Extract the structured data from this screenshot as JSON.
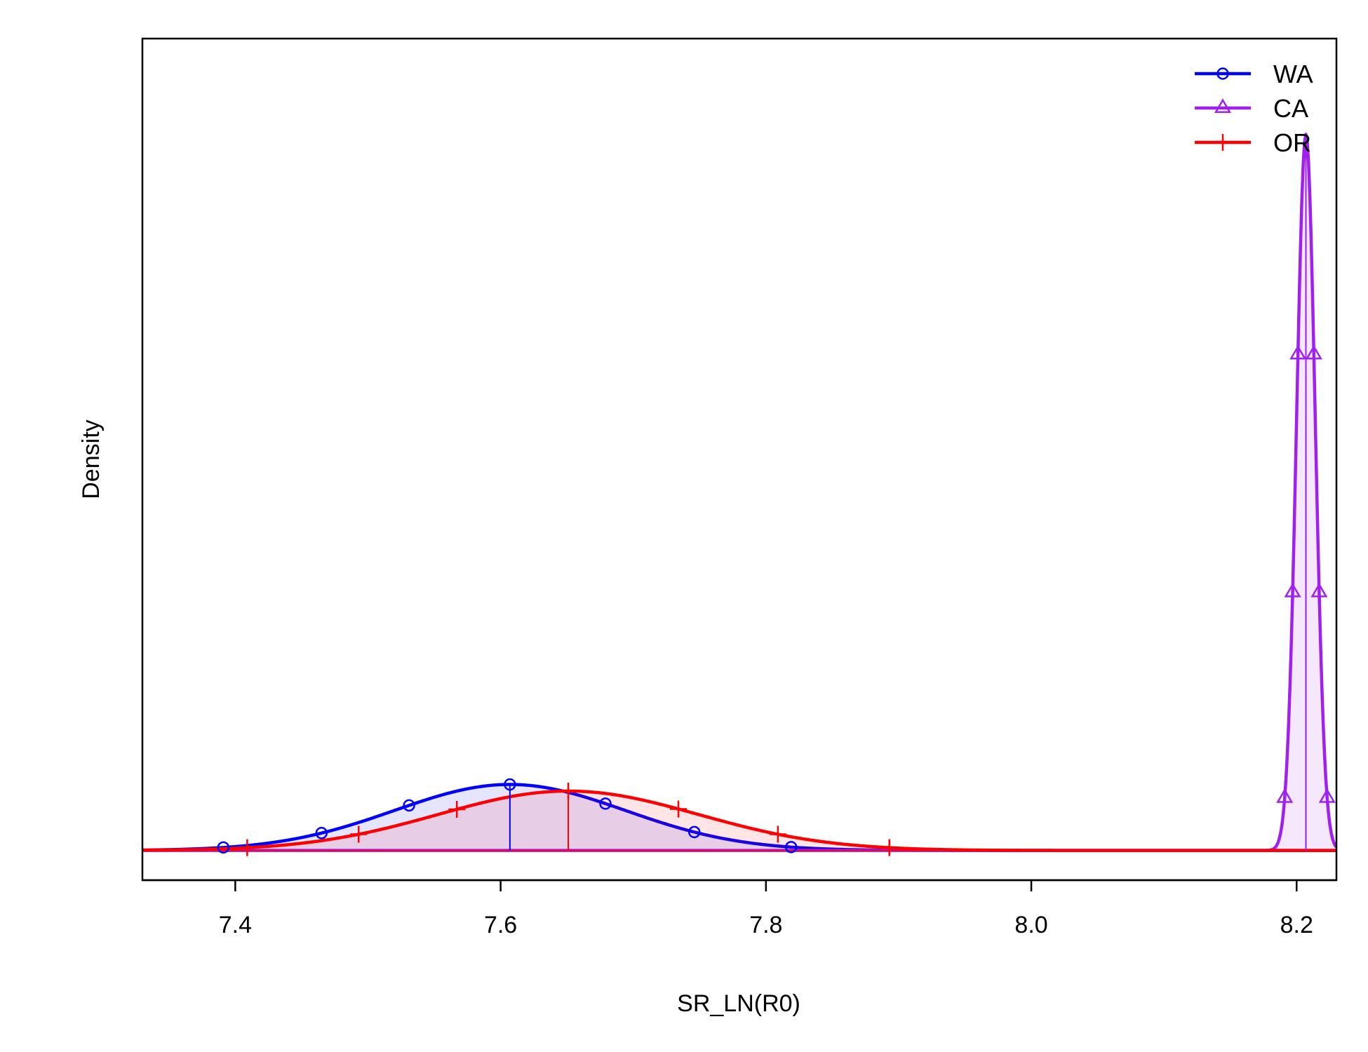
{
  "chart_data": {
    "type": "line",
    "title": "",
    "xlabel": "SR_LN(R0)",
    "ylabel": "Density",
    "xlim": [
      7.33,
      8.23
    ],
    "ylim": [
      -0.45,
      12.3
    ],
    "x_ticks": [
      "7.4",
      "7.6",
      "7.8",
      "8.0",
      "8.2"
    ],
    "x_tick_values": [
      7.4,
      7.6,
      7.8,
      8.0,
      8.2
    ],
    "show_y_ticks": false,
    "grid": false,
    "legend_position": "top-right",
    "series": [
      {
        "name": "WA",
        "color": "#0000ff",
        "fill": "#0000ff",
        "marker": "circle",
        "distribution": "normal",
        "mean": 7.607,
        "sd": 0.087,
        "peak_density": 1.0,
        "median_line": 7.607,
        "marker_x": [
          7.391,
          7.465,
          7.531,
          7.607,
          7.679,
          7.746,
          7.819
        ]
      },
      {
        "name": "CA",
        "color": "#a020f0",
        "fill": "#a020f0",
        "marker": "triangle",
        "distribution": "normal",
        "mean": 8.207,
        "sd": 0.007,
        "peak_density": 10.85,
        "median_line": 8.207,
        "marker_x": [
          8.191,
          8.197,
          8.201,
          8.213,
          8.217,
          8.223
        ]
      },
      {
        "name": "OR",
        "color": "#ff0000",
        "fill": "#ff0000",
        "marker": "plus",
        "distribution": "normal",
        "mean": 7.651,
        "sd": 0.098,
        "peak_density": 0.9,
        "median_line": 7.651,
        "marker_x": [
          7.409,
          7.493,
          7.567,
          7.651,
          7.734,
          7.809,
          7.893
        ]
      }
    ]
  }
}
